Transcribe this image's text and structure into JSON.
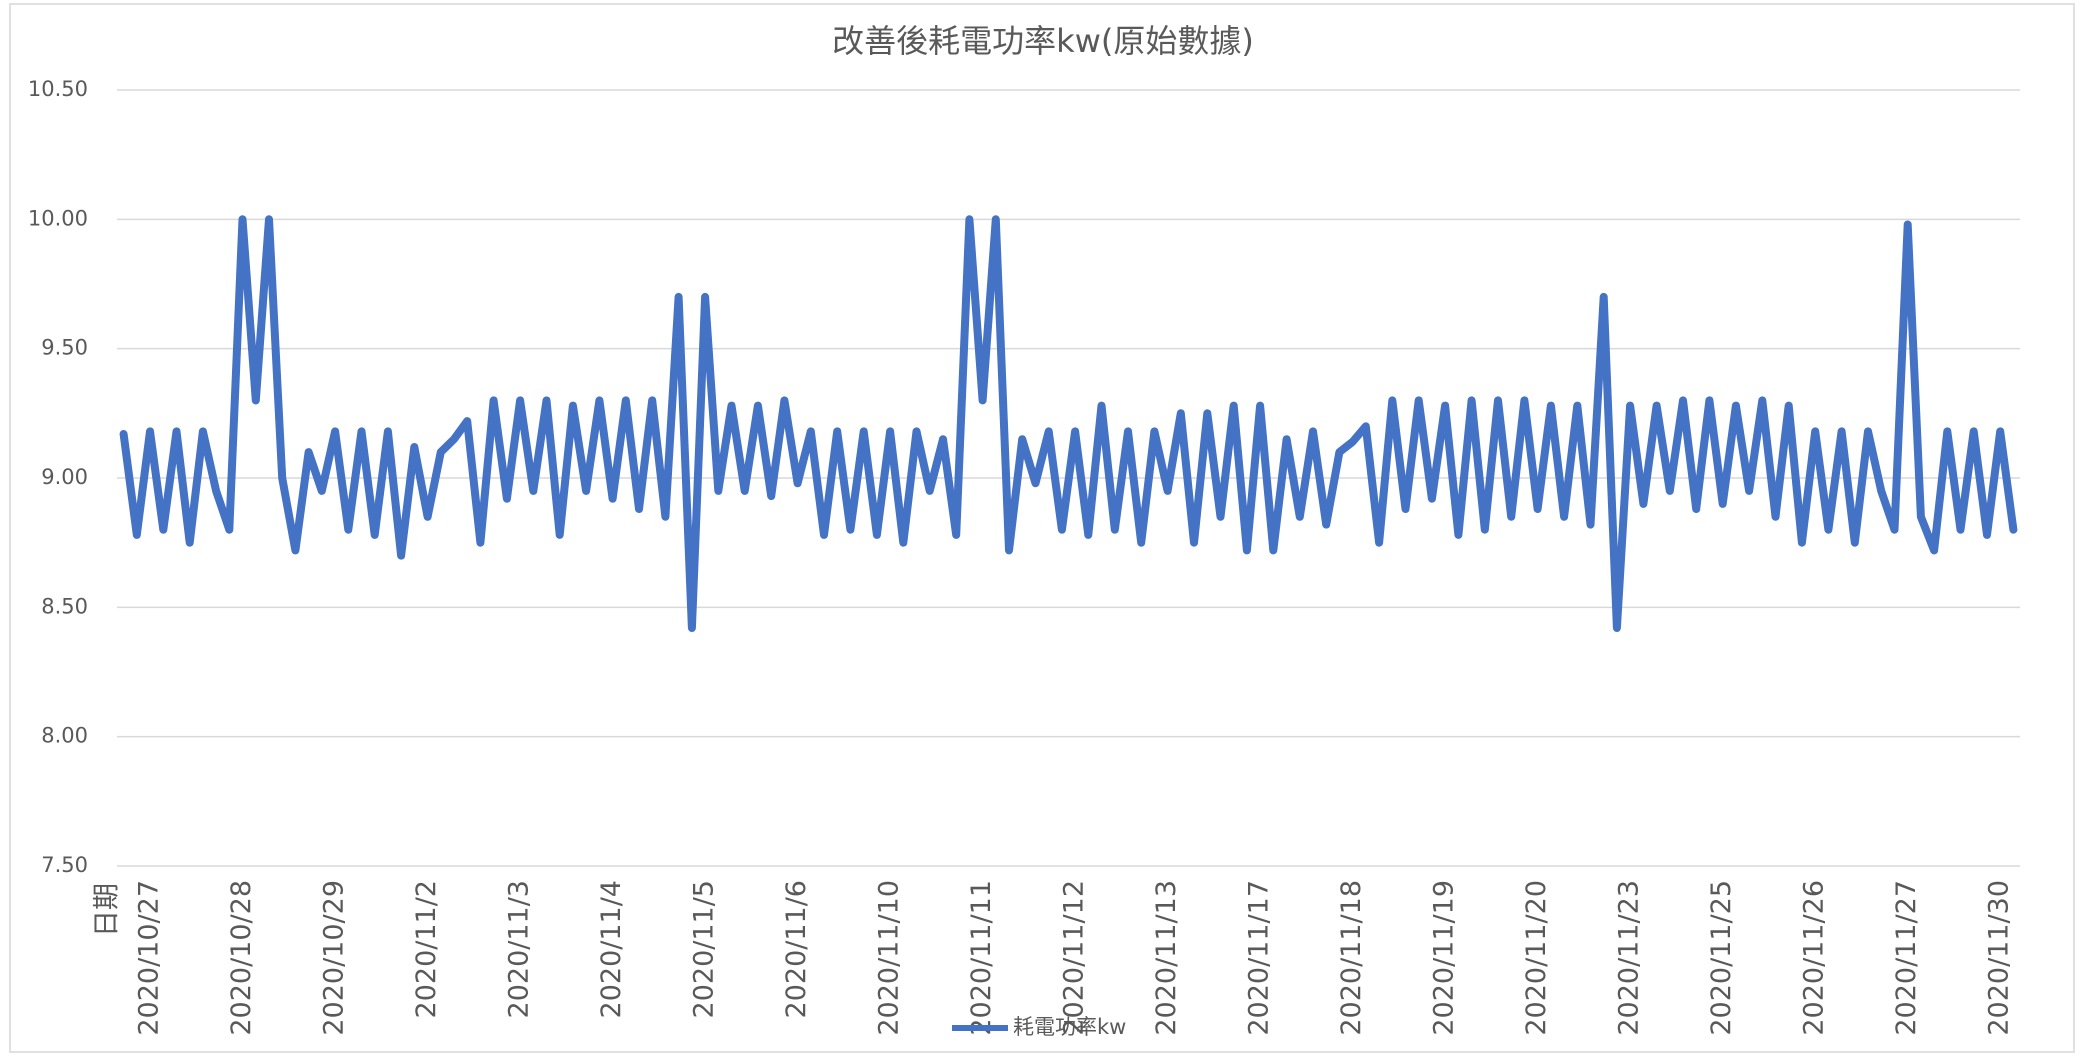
{
  "chart_data": {
    "type": "line",
    "title": "改善後耗電功率kw(原始數據)",
    "x_label": "日期",
    "categories": [
      null,
      null,
      "2020/10/27",
      null,
      null,
      null,
      null,
      null,
      null,
      "2020/10/28",
      null,
      null,
      null,
      null,
      null,
      null,
      "2020/10/29",
      null,
      null,
      null,
      null,
      null,
      null,
      "2020/11/2",
      null,
      null,
      null,
      null,
      null,
      null,
      "2020/11/3",
      null,
      null,
      null,
      null,
      null,
      null,
      "2020/11/4",
      null,
      null,
      null,
      null,
      null,
      null,
      "2020/11/5",
      null,
      null,
      null,
      null,
      null,
      null,
      "2020/11/6",
      null,
      null,
      null,
      null,
      null,
      null,
      "2020/11/10",
      null,
      null,
      null,
      null,
      null,
      null,
      "2020/11/11",
      null,
      null,
      null,
      null,
      null,
      null,
      "2020/11/12",
      null,
      null,
      null,
      null,
      null,
      null,
      "2020/11/13",
      null,
      null,
      null,
      null,
      null,
      null,
      "2020/11/17",
      null,
      null,
      null,
      null,
      null,
      null,
      "2020/11/18",
      null,
      null,
      null,
      null,
      null,
      null,
      "2020/11/19",
      null,
      null,
      null,
      null,
      null,
      null,
      "2020/11/20",
      null,
      null,
      null,
      null,
      null,
      null,
      "2020/11/23",
      null,
      null,
      null,
      null,
      null,
      null,
      "2020/11/25",
      null,
      null,
      null,
      null,
      null,
      null,
      "2020/11/26",
      null,
      null,
      null,
      null,
      null,
      null,
      "2020/11/27",
      null,
      null,
      null,
      null,
      null,
      null,
      "2020/11/30",
      null
    ],
    "series": [
      {
        "name": "耗電功率kw",
        "color": "#4472c4",
        "values": [
          9.17,
          8.78,
          9.18,
          8.8,
          9.18,
          8.75,
          9.18,
          8.95,
          8.8,
          10.0,
          9.3,
          10.0,
          9.0,
          8.72,
          9.1,
          8.95,
          9.18,
          8.8,
          9.18,
          8.78,
          9.18,
          8.7,
          9.12,
          8.85,
          9.1,
          9.15,
          9.22,
          8.75,
          9.3,
          8.92,
          9.3,
          8.95,
          9.3,
          8.78,
          9.28,
          8.95,
          9.3,
          8.92,
          9.3,
          8.88,
          9.3,
          8.85,
          9.7,
          8.42,
          9.7,
          8.95,
          9.28,
          8.95,
          9.28,
          8.93,
          9.3,
          8.98,
          9.18,
          8.78,
          9.18,
          8.8,
          9.18,
          8.78,
          9.18,
          8.75,
          9.18,
          8.95,
          9.15,
          8.78,
          10.0,
          9.3,
          10.0,
          8.72,
          9.15,
          8.98,
          9.18,
          8.8,
          9.18,
          8.78,
          9.28,
          8.8,
          9.18,
          8.75,
          9.18,
          8.95,
          9.25,
          8.75,
          9.25,
          8.85,
          9.28,
          8.72,
          9.28,
          8.72,
          9.15,
          8.85,
          9.18,
          8.82,
          9.1,
          9.14,
          9.2,
          8.75,
          9.3,
          8.88,
          9.3,
          8.92,
          9.28,
          8.78,
          9.3,
          8.8,
          9.3,
          8.85,
          9.3,
          8.88,
          9.28,
          8.85,
          9.28,
          8.82,
          9.7,
          8.42,
          9.28,
          8.9,
          9.28,
          8.95,
          9.3,
          8.88,
          9.3,
          8.9,
          9.28,
          8.95,
          9.3,
          8.85,
          9.28,
          8.75,
          9.18,
          8.8,
          9.18,
          8.75,
          9.18,
          8.95,
          8.8,
          9.98,
          8.85,
          8.72,
          9.18,
          8.8,
          9.18,
          8.78,
          9.18,
          8.8
        ]
      }
    ],
    "ylim": [
      7.5,
      10.5
    ],
    "yticks": [
      {
        "value": 7.5,
        "label": "7.50"
      },
      {
        "value": 8.0,
        "label": "8.00"
      },
      {
        "value": 8.5,
        "label": "8.50"
      },
      {
        "value": 9.0,
        "label": "9.00"
      },
      {
        "value": 9.5,
        "label": "9.50"
      },
      {
        "value": 10.0,
        "label": "10.00"
      },
      {
        "value": 10.5,
        "label": "10.50"
      }
    ],
    "grid": true,
    "legend": "bottom"
  }
}
